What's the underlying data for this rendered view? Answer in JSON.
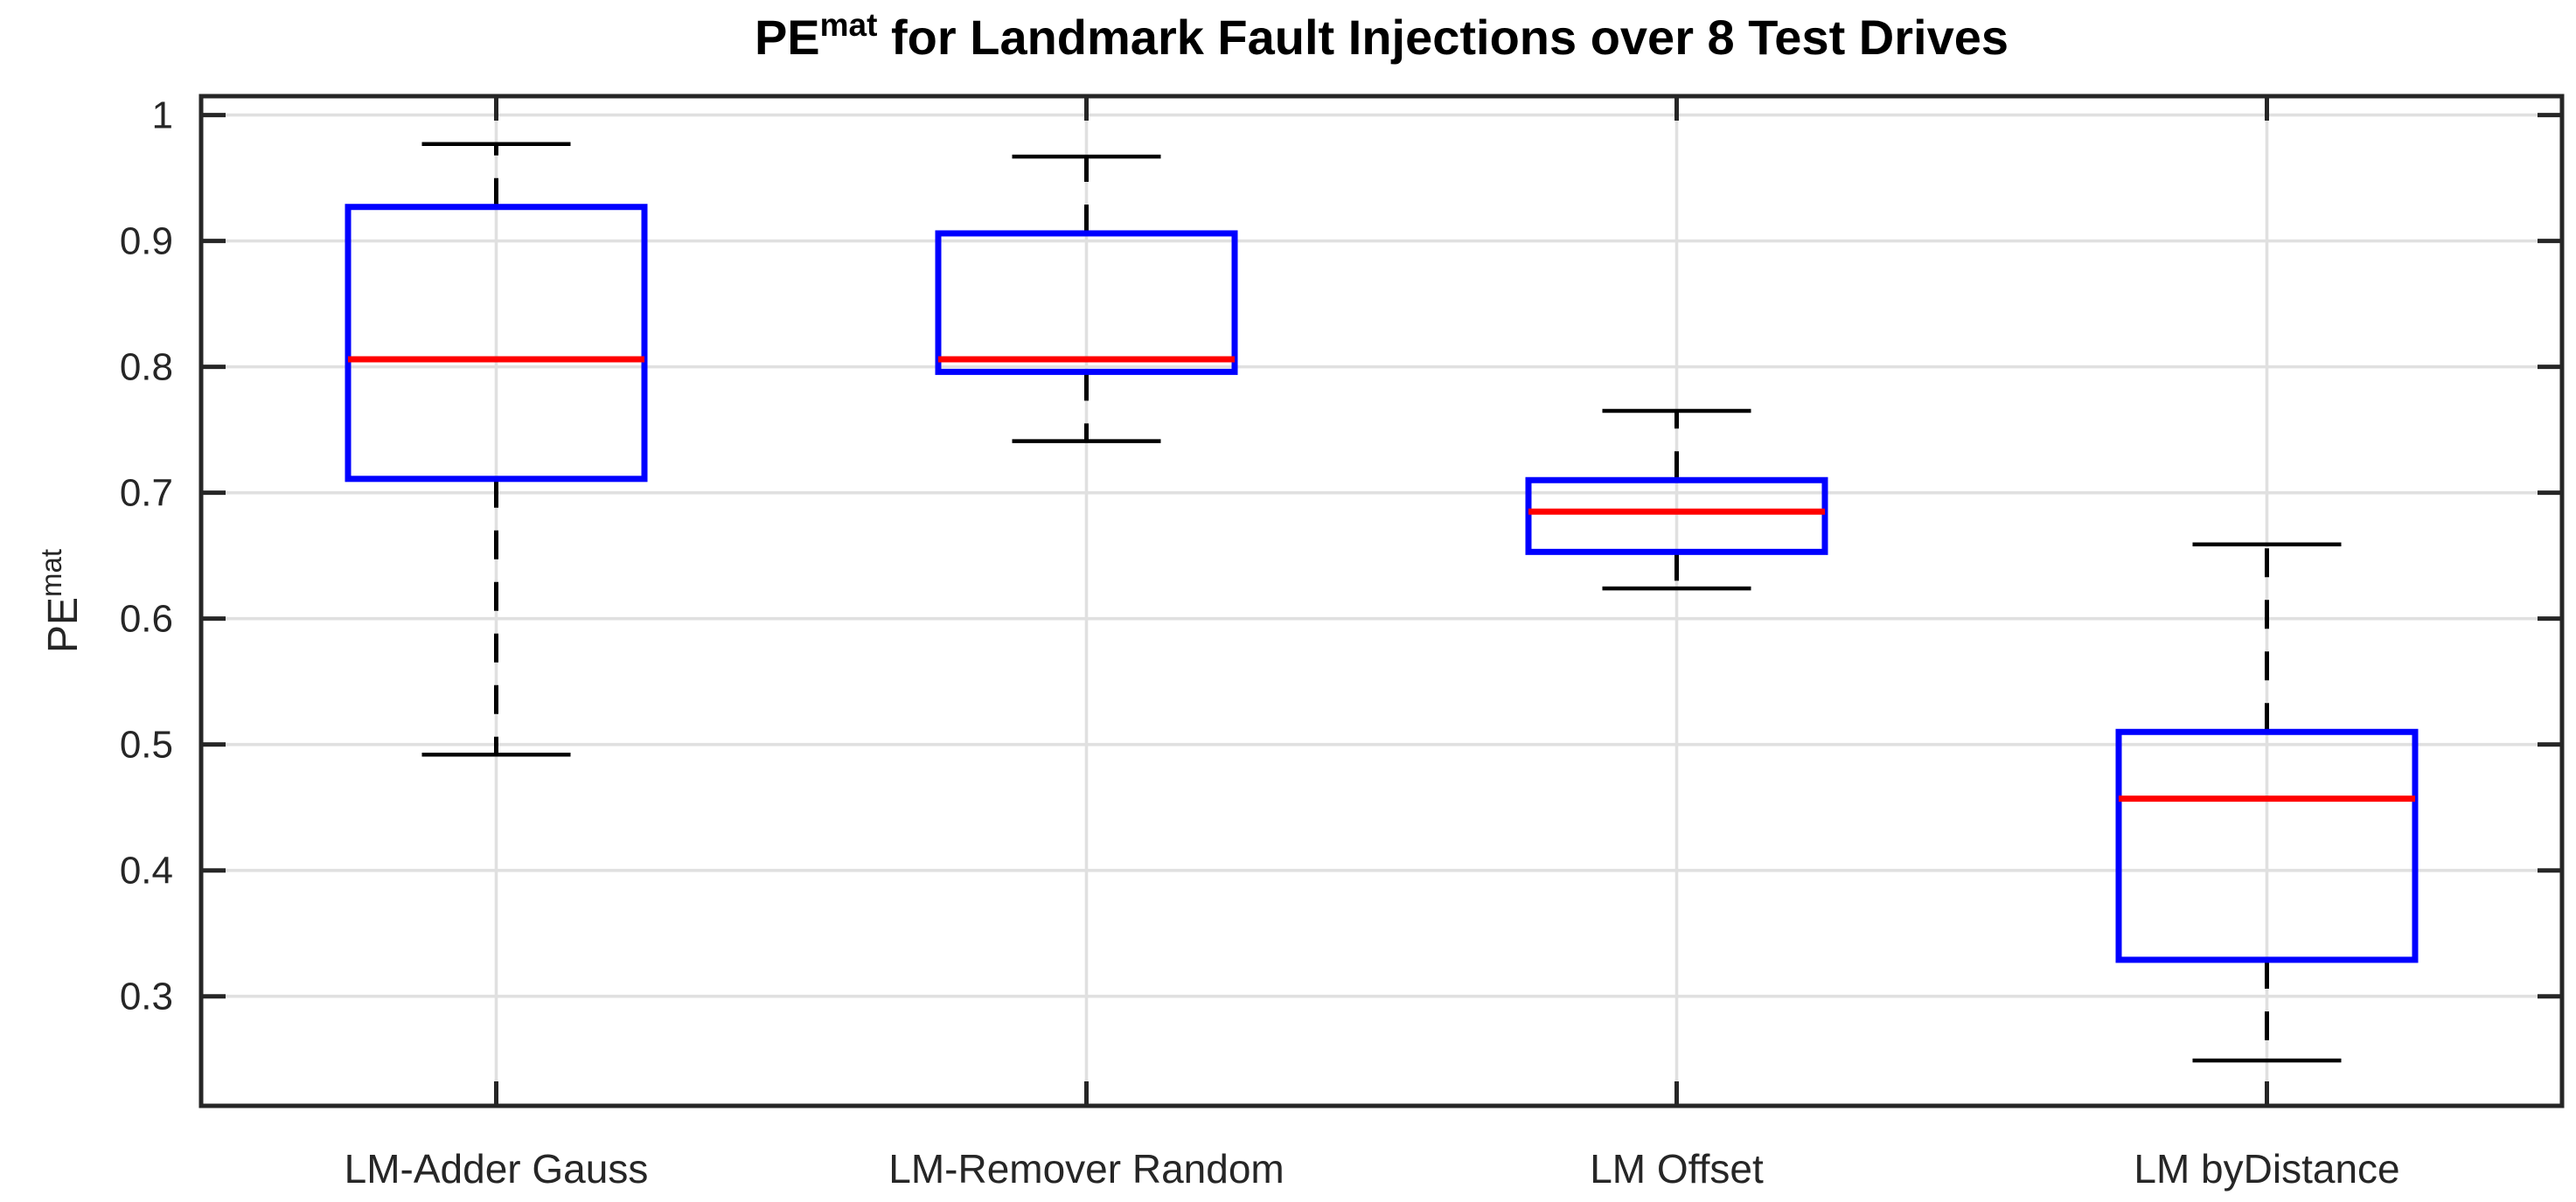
{
  "figure": {
    "background": "#ffffff"
  },
  "chart_data": {
    "type": "box",
    "title": {
      "base": "PE",
      "superscript": "mat",
      "rest": " for Landmark Fault Injections over 8 Test Drives",
      "full_text": "PE^mat for Landmark Fault Injections over 8 Test Drives"
    },
    "ylabel": {
      "base": "PE",
      "superscript": "mat",
      "full_text": "PE^mat"
    },
    "xlabel": "",
    "categories": [
      "LM-Adder Gauss",
      "LM-Remover Random",
      "LM Offset",
      "LM byDistance"
    ],
    "series": [
      {
        "category": "LM-Adder Gauss",
        "whisker_low": 0.492,
        "q1": 0.711,
        "median": 0.806,
        "q3": 0.927,
        "whisker_high": 0.977
      },
      {
        "category": "LM-Remover Random",
        "whisker_low": 0.741,
        "q1": 0.796,
        "median": 0.806,
        "q3": 0.906,
        "whisker_high": 0.967
      },
      {
        "category": "LM Offset",
        "whisker_low": 0.624,
        "q1": 0.653,
        "median": 0.685,
        "q3": 0.71,
        "whisker_high": 0.765
      },
      {
        "category": "LM byDistance",
        "whisker_low": 0.249,
        "q1": 0.329,
        "median": 0.457,
        "q3": 0.51,
        "whisker_high": 0.659
      }
    ],
    "yticks": [
      1,
      0.9,
      0.8,
      0.7,
      0.6,
      0.5,
      0.4,
      0.3
    ],
    "ytick_labels": [
      "1",
      "0.9",
      "0.8",
      "0.7",
      "0.6",
      "0.5",
      "0.4",
      "0.3"
    ],
    "ylim": [
      0.213,
      1.015
    ],
    "grid": true,
    "legend": null,
    "colors": {
      "box_edge": "#0000ff",
      "median": "#ff0000",
      "whisker": "#000000",
      "cap": "#000000",
      "grid": "#e0e0e0",
      "axis": "#262626",
      "tick_label": "#262626",
      "title": "#000000",
      "background": "#ffffff"
    }
  }
}
